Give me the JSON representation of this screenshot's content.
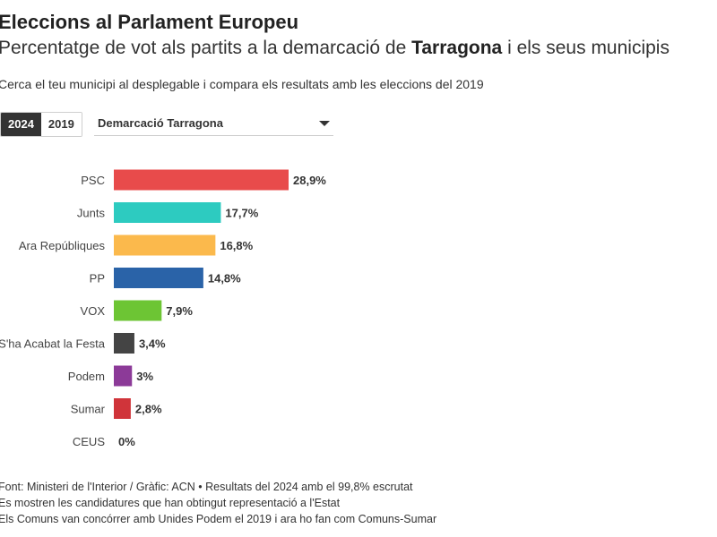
{
  "header": {
    "title": "Eleccions al Parlament Europeu",
    "subtitle_prefix": "Percentatge de vot als partits a la demarcació de ",
    "subtitle_highlight": "Tarragona",
    "subtitle_suffix": " i els seus municipis",
    "instruction": "Cerca el teu municipi al desplegable i compara els resultats amb les eleccions del 2019"
  },
  "controls": {
    "years": [
      {
        "label": "2024",
        "active": true
      },
      {
        "label": "2019",
        "active": false
      }
    ],
    "dropdown_value": "Demarcació Tarragona"
  },
  "chart_data": {
    "type": "bar",
    "orientation": "horizontal",
    "categories": [
      "PSC",
      "Junts",
      "Ara Repúbliques",
      "PP",
      "VOX",
      "S'ha Acabat la Festa",
      "Podem",
      "Sumar",
      "CEUS"
    ],
    "values": [
      28.9,
      17.7,
      16.8,
      14.8,
      7.9,
      3.4,
      3.0,
      2.8,
      0.0
    ],
    "value_labels": [
      "28,9%",
      "17,7%",
      "16,8%",
      "14,8%",
      "7,9%",
      "3,4%",
      "3%",
      "2,8%",
      "0%"
    ],
    "colors": [
      "#e84b4b",
      "#2dcbc0",
      "#fbb94c",
      "#2a63a8",
      "#6dc534",
      "#444444",
      "#8c3a98",
      "#d0343a",
      "#999999"
    ],
    "xlim": [
      0,
      40
    ],
    "grid": false,
    "legend": false
  },
  "footer": {
    "lines": [
      "Font: Ministeri de l'Interior / Gràfic: ACN • Resultats del 2024 amb el 99,8% escrutat",
      "Es mostren les candidatures que han obtingut representació a l'Estat",
      "Els Comuns van concórrer amb Unides Podem el 2019 i ara ho fan com Comuns-Sumar"
    ]
  }
}
